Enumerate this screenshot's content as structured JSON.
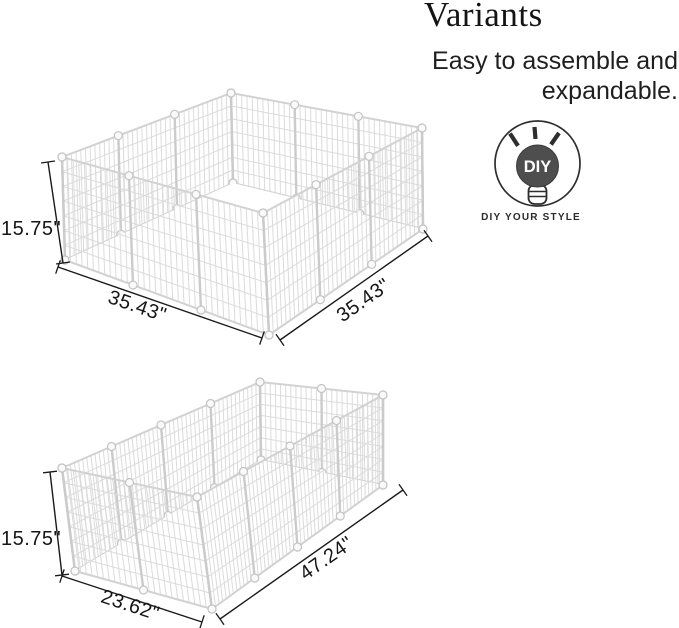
{
  "header": {
    "title": "Variants",
    "subtitle_line1": "Easy to assemble and",
    "subtitle_line2": "expandable."
  },
  "diy_badge": {
    "bulb_label": "DIY",
    "caption": "DIY YOUR STYLE"
  },
  "pens": [
    {
      "name": "square pen 35.43 x 35.43 x 15.75 in",
      "height_label": "15.75\"",
      "front_left_label": "35.43\"",
      "front_right_label": "35.43\""
    },
    {
      "name": "rectangular pen 47.24 x 23.62 x 15.75 in",
      "height_label": "15.75\"",
      "front_left_label": "23.62\"",
      "front_right_label": "47.24\""
    }
  ]
}
